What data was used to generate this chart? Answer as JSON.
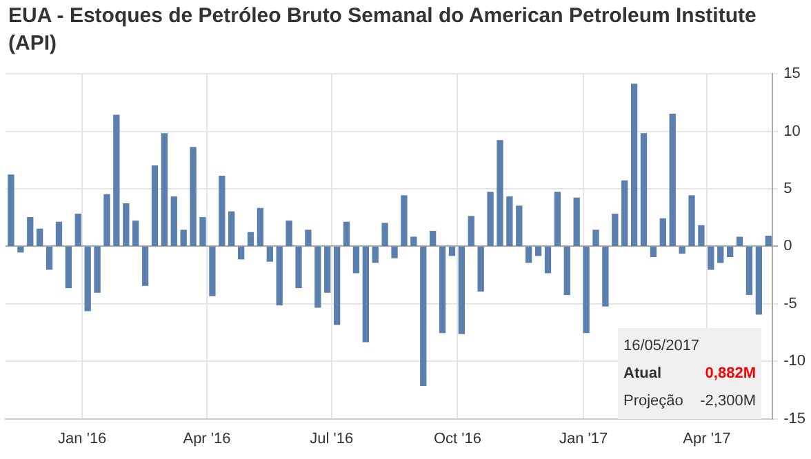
{
  "chart_data": {
    "type": "bar",
    "title": "EUA - Estoques de Petróleo Bruto Semanal do American Petroleum Institute (API)",
    "x": [
      "2015-11-10",
      "2015-11-17",
      "2015-11-24",
      "2015-12-01",
      "2015-12-08",
      "2015-12-15",
      "2015-12-22",
      "2015-12-29",
      "2016-01-05",
      "2016-01-12",
      "2016-01-19",
      "2016-01-26",
      "2016-02-02",
      "2016-02-09",
      "2016-02-16",
      "2016-02-23",
      "2016-03-01",
      "2016-03-08",
      "2016-03-15",
      "2016-03-22",
      "2016-03-29",
      "2016-04-05",
      "2016-04-12",
      "2016-04-19",
      "2016-04-26",
      "2016-05-03",
      "2016-05-10",
      "2016-05-17",
      "2016-05-24",
      "2016-05-31",
      "2016-06-07",
      "2016-06-14",
      "2016-06-21",
      "2016-06-28",
      "2016-07-05",
      "2016-07-12",
      "2016-07-19",
      "2016-07-26",
      "2016-08-02",
      "2016-08-09",
      "2016-08-16",
      "2016-08-23",
      "2016-08-30",
      "2016-09-06",
      "2016-09-13",
      "2016-09-20",
      "2016-09-27",
      "2016-10-04",
      "2016-10-11",
      "2016-10-18",
      "2016-10-25",
      "2016-11-01",
      "2016-11-08",
      "2016-11-15",
      "2016-11-22",
      "2016-11-29",
      "2016-12-06",
      "2016-12-13",
      "2016-12-20",
      "2016-12-27",
      "2017-01-03",
      "2017-01-10",
      "2017-01-17",
      "2017-01-24",
      "2017-01-31",
      "2017-02-07",
      "2017-02-14",
      "2017-02-21",
      "2017-02-28",
      "2017-03-07",
      "2017-03-14",
      "2017-03-21",
      "2017-03-28",
      "2017-04-04",
      "2017-04-11",
      "2017-04-18",
      "2017-04-25",
      "2017-05-02",
      "2017-05-09",
      "2017-05-16"
    ],
    "values": [
      6.2,
      -0.5,
      2.5,
      1.5,
      -2.0,
      2.1,
      -3.6,
      2.8,
      -5.6,
      -4.0,
      4.5,
      11.4,
      3.7,
      2.2,
      -3.4,
      7.0,
      9.8,
      4.3,
      1.4,
      8.6,
      2.5,
      -4.3,
      6.1,
      3.0,
      -1.1,
      1.2,
      3.3,
      -1.3,
      -5.1,
      2.2,
      -3.6,
      1.4,
      -5.3,
      -4.0,
      -6.8,
      2.1,
      -2.3,
      -8.3,
      -1.4,
      2.0,
      -1.0,
      4.4,
      0.8,
      -12.1,
      1.3,
      -7.5,
      -0.8,
      -7.6,
      2.6,
      -3.9,
      4.7,
      9.2,
      4.3,
      3.5,
      -1.4,
      -0.8,
      -2.3,
      4.7,
      -4.2,
      4.2,
      -7.5,
      1.4,
      -5.2,
      2.8,
      5.7,
      14.1,
      9.8,
      -0.9,
      2.4,
      11.5,
      -0.6,
      4.4,
      1.8,
      -2.0,
      -1.4,
      -0.9,
      0.8,
      -4.2,
      -5.9,
      0.882
    ],
    "color": "#5b80ad",
    "xlim": [
      "2015-11-06",
      "2017-05-19"
    ],
    "xticks": [
      {
        "value": "2016-01-01",
        "label": "Jan '16"
      },
      {
        "value": "2016-04-01",
        "label": "Apr '16"
      },
      {
        "value": "2016-07-01",
        "label": "Jul '16"
      },
      {
        "value": "2016-10-01",
        "label": "Oct '16"
      },
      {
        "value": "2017-01-01",
        "label": "Jan '17"
      },
      {
        "value": "2017-04-01",
        "label": "Apr '17"
      }
    ],
    "ylim": [
      -15,
      15
    ],
    "yticks": [
      -15,
      -10,
      -5,
      0,
      5,
      10,
      15
    ],
    "grid": true,
    "annotations": [
      "16/05/2017",
      "Atual",
      "0,882M",
      "Projeção",
      "-2,300M"
    ]
  }
}
